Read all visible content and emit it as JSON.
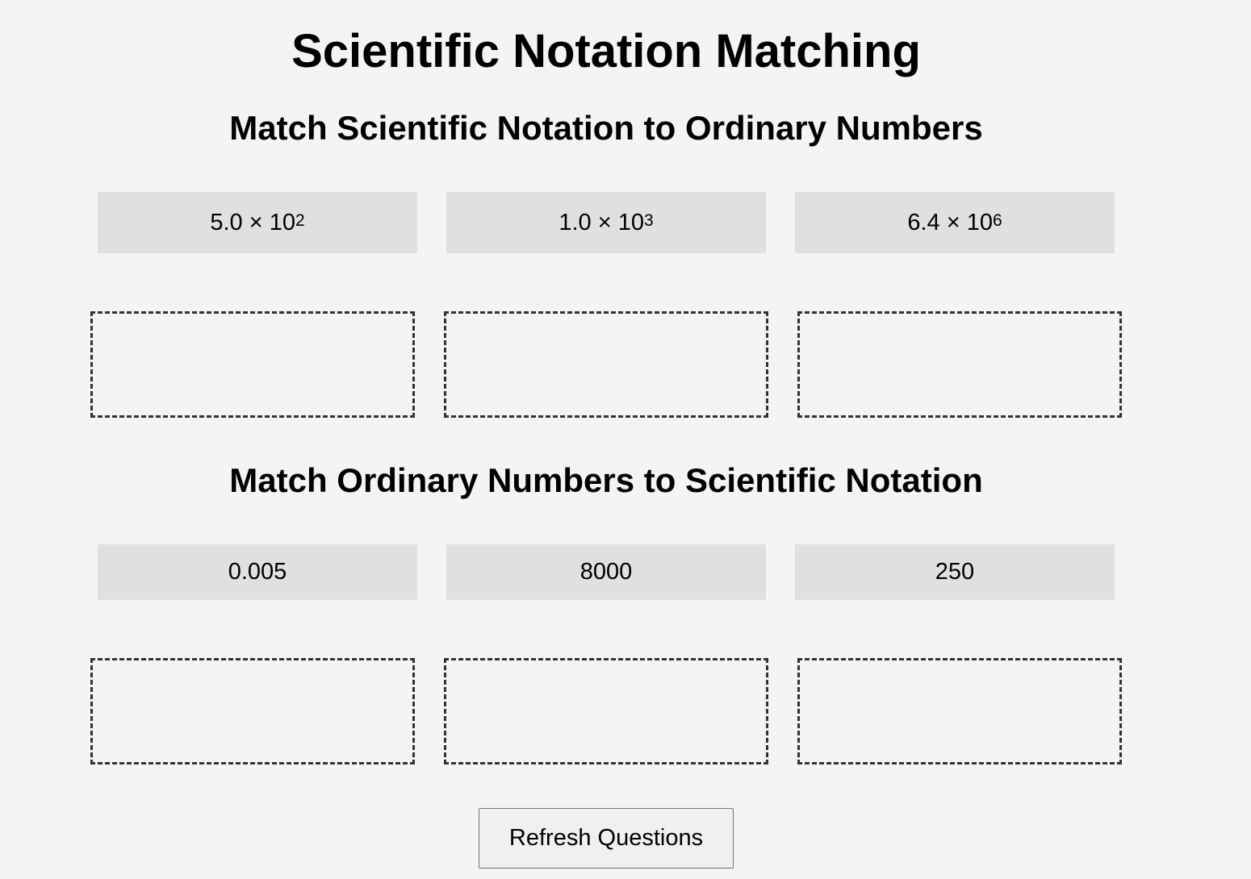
{
  "page": {
    "title": "Scientific Notation Matching"
  },
  "section1": {
    "heading": "Match Scientific Notation to Ordinary Numbers",
    "cards": [
      {
        "base": "5.0 × 10",
        "exponent": "2"
      },
      {
        "base": "1.0 × 10",
        "exponent": "3"
      },
      {
        "base": "6.4 × 10",
        "exponent": "6"
      }
    ],
    "drop_zones": [
      "",
      "",
      ""
    ]
  },
  "section2": {
    "heading": "Match Ordinary Numbers to Scientific Notation",
    "cards": [
      "0.005",
      "8000",
      "250"
    ],
    "drop_zones": [
      "",
      "",
      ""
    ]
  },
  "actions": {
    "refresh_label": "Refresh Questions"
  },
  "colors": {
    "background": "#f4f4f4",
    "card": "#e0e0e0",
    "drop_border": "#333333"
  }
}
